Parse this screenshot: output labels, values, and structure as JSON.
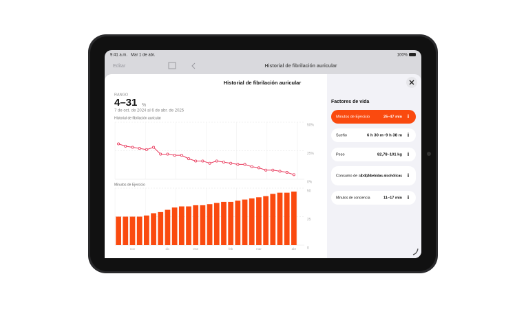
{
  "status_bar": {
    "time": "9:41 a.m.",
    "date": "Mar 1 de abr.",
    "battery": "100%"
  },
  "nav": {
    "edit": "Editar",
    "title": "Historial de fibrilación auricular"
  },
  "sheet": {
    "title": "Historial de fibrilación auricular",
    "range_label": "RANGO",
    "range_value": "4–31",
    "range_unit": "%",
    "date_range": "7 de oct. de 2024 al 6 de abr. de 2025"
  },
  "charts": [
    {
      "type": "line",
      "title": "Historial de fibrilación auricular",
      "color": "#e8375a",
      "values": [
        31,
        29,
        28,
        27,
        26,
        28,
        22,
        22,
        21,
        21,
        18,
        16,
        16,
        14,
        16,
        15,
        14,
        13,
        13,
        11,
        10,
        8,
        8,
        7,
        6,
        4
      ],
      "ylim": [
        0,
        50
      ],
      "yticks": [
        {
          "value": 50,
          "label": "50%"
        },
        {
          "value": 25,
          "label": "25%"
        },
        {
          "value": 0,
          "label": "0%"
        }
      ]
    },
    {
      "type": "bar",
      "title": "Minutos de Ejercicio",
      "color": "#fa4a0f",
      "categories": [
        null,
        null,
        "nov",
        null,
        null,
        null,
        null,
        "dic",
        null,
        null,
        null,
        "ene",
        null,
        null,
        null,
        null,
        "feb",
        null,
        null,
        null,
        "mar",
        null,
        null,
        null,
        null,
        "abr"
      ],
      "values": [
        25,
        25,
        25,
        25,
        26,
        28,
        29,
        31,
        33,
        34,
        34,
        35,
        35,
        36,
        37,
        38,
        38,
        39,
        40,
        41,
        42,
        43,
        45,
        46,
        46,
        47
      ],
      "ylim": [
        0,
        50
      ],
      "yticks": [
        50,
        25,
        0
      ]
    }
  ],
  "factors": {
    "title": "Factores de vida",
    "items": [
      {
        "name": "Minutos de Ejercicio",
        "value": "25–47 min",
        "selected": true
      },
      {
        "name": "Sueño",
        "value": "6 h 30 m–9 h 38 m",
        "selected": false
      },
      {
        "name": "Peso",
        "value": "82,78–101 kg",
        "selected": false
      },
      {
        "name": "Consumo de alcohol",
        "value": "1–2,2 bebidas alcohólicas",
        "selected": false
      },
      {
        "name": "Minutos de conciencia",
        "value": "11–17 min",
        "selected": false
      }
    ]
  }
}
